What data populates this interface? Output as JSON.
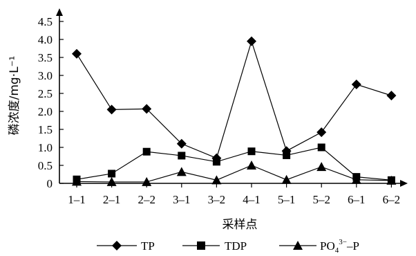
{
  "chart_data": {
    "type": "line",
    "title": "",
    "xlabel": "采样点",
    "ylabel": "磷浓度/mg·L⁻¹",
    "categories": [
      "1–1",
      "2–1",
      "2–2",
      "3–1",
      "3–2",
      "4–1",
      "5–1",
      "5–2",
      "6–1",
      "6–2"
    ],
    "ylim": [
      0,
      4.5
    ],
    "yticks": [
      "0",
      "0.5",
      "1.0",
      "1.5",
      "2.0",
      "2.5",
      "3.0",
      "3.5",
      "4.0",
      "4.5"
    ],
    "grid": false,
    "legend_position": "bottom",
    "series": [
      {
        "name": "TP",
        "marker": "diamond",
        "values": [
          3.6,
          2.05,
          2.07,
          1.1,
          0.7,
          3.95,
          0.9,
          1.42,
          2.75,
          2.44
        ]
      },
      {
        "name": "TDP",
        "marker": "square",
        "values": [
          0.11,
          0.27,
          0.88,
          0.77,
          0.6,
          0.89,
          0.78,
          1.0,
          0.18,
          0.09
        ]
      },
      {
        "name": "PO₄³⁻–P",
        "marker": "triangle",
        "values": [
          0.05,
          0.04,
          0.04,
          0.32,
          0.09,
          0.5,
          0.1,
          0.46,
          0.1,
          0.08
        ]
      }
    ],
    "legend": {
      "tp": "TP",
      "tdp": "TDP",
      "po4_main": "PO",
      "po4_sub": "4",
      "po4_sup": "3−",
      "po4_rest": "–P"
    },
    "colors": {
      "line": "#000000",
      "axis": "#000000"
    }
  }
}
